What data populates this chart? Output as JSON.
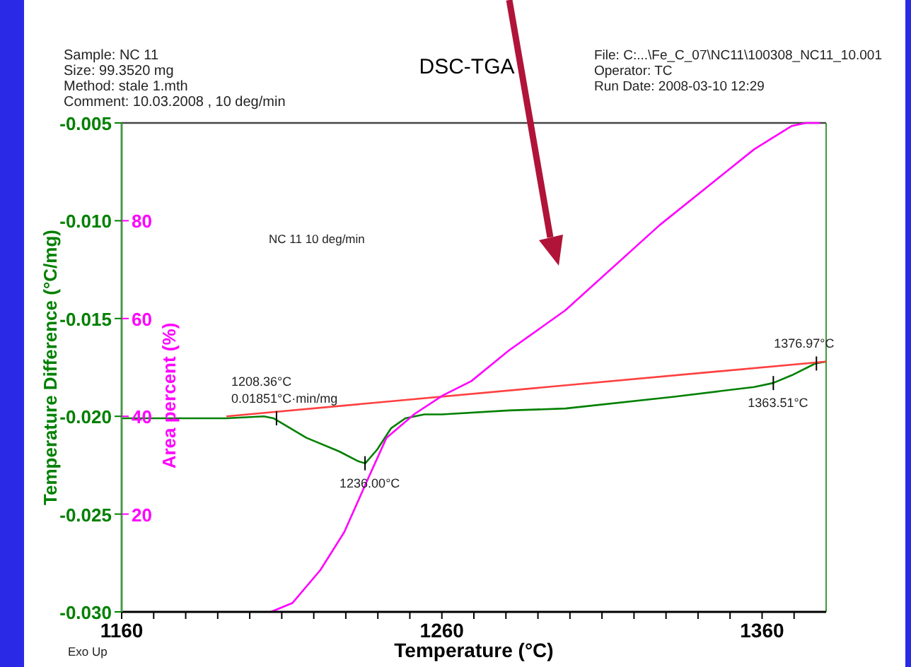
{
  "chart_data": {
    "type": "line",
    "title": "DSC-TGA",
    "xlabel": "Temperature (°C)",
    "ylabel": "Temperature Difference (°C/mg)",
    "y2label": "Area percent (%)",
    "xlim": [
      1160,
      1380
    ],
    "xticks": [
      1160,
      {
        "value": 1170,
        "label": null
      },
      {
        "value": 1180,
        "label": null
      },
      {
        "value": 1190,
        "label": null
      },
      {
        "value": 1200,
        "label": null
      },
      {
        "value": 1210,
        "label": null
      },
      {
        "value": 1220,
        "label": null
      },
      {
        "value": 1230,
        "label": null
      },
      {
        "value": 1240,
        "label": null
      },
      {
        "value": 1250,
        "label": null
      },
      1260,
      {
        "value": 1270,
        "label": null
      },
      {
        "value": 1280,
        "label": null
      },
      {
        "value": 1290,
        "label": null
      },
      {
        "value": 1300,
        "label": null
      },
      {
        "value": 1310,
        "label": null
      },
      {
        "value": 1320,
        "label": null
      },
      {
        "value": 1330,
        "label": null
      },
      {
        "value": 1340,
        "label": null
      },
      {
        "value": 1350,
        "label": null
      },
      1360,
      {
        "value": 1370,
        "label": null
      }
    ],
    "ylim": [
      -0.03,
      -0.005
    ],
    "yticks": [
      {
        "value": -0.03,
        "label": "-0.030"
      },
      -0.025,
      {
        "value": -0.02,
        "label": "-0.020"
      },
      -0.015,
      {
        "value": -0.01,
        "label": "-0.010"
      },
      -0.005
    ],
    "y2lim": [
      0,
      100
    ],
    "y2ticks": [
      20,
      40,
      60,
      80
    ],
    "grid": false,
    "marker": "none",
    "line_style": "solid",
    "series": [
      {
        "color": "#008000",
        "x": [
          1160,
          1192.7,
          1204.4,
          1207.4,
          1217.7,
          1228,
          1233.9,
          1236.1,
          1239.8,
          1244.2,
          1248.6,
          1254.5,
          1260,
          1281,
          1298.6,
          1332.5,
          1357.5,
          1363.4,
          1369.3,
          1376.6,
          1380
        ],
        "values": [
          -0.0201,
          -0.0201,
          -0.02,
          -0.0201,
          -0.0211,
          -0.0218,
          -0.0223,
          -0.0224,
          -0.0217,
          -0.0206,
          -0.0201,
          -0.0199,
          -0.0199,
          -0.0197,
          -0.0196,
          -0.019,
          -0.0185,
          -0.0183,
          -0.0179,
          -0.0173,
          -0.0172
        ]
      },
      {
        "color": "#ff4040",
        "x": [
          1192.7,
          1380
        ],
        "values": [
          -0.02,
          -0.0172
        ]
      },
      {
        "color": "#ff00ff",
        "axis": "y2",
        "x": [
          1206.6,
          1213.3,
          1222.1,
          1229.5,
          1236.1,
          1242.7,
          1251.5,
          1260.4,
          1269.2,
          1281,
          1298.6,
          1328,
          1357.5,
          1369.3,
          1373.7,
          1378
        ],
        "values": [
          0,
          1.8,
          8.6,
          16.3,
          26,
          35.6,
          40.5,
          44.3,
          47.2,
          53.5,
          61.7,
          79.1,
          94.6,
          99.4,
          100,
          100
        ]
      }
    ],
    "annotations": [
      "Sample: NC 11",
      "Size:  99.3520 mg",
      "Method: stale 1.mth",
      "Comment: 10.03.2008 , 10 deg/min",
      "File: C:...\\Fe_C_07\\NC11\\100308_NC11_10.001",
      "Operator: TC",
      "Run Date: 2008-03-10 12:29",
      "NC 11 10 deg/min",
      "Exo Up",
      {
        "text": "1208.36°C\n0.01851°C·min/mg",
        "x": 1208.36,
        "y": -0.0201
      },
      {
        "text": "1236.00°C",
        "x": 1236,
        "y": -0.0224
      },
      {
        "text": "1363.51°C",
        "x": 1363.51,
        "y": -0.0183
      },
      {
        "text": "1376.97°C",
        "x": 1376.97,
        "y": -0.0173
      }
    ]
  }
}
